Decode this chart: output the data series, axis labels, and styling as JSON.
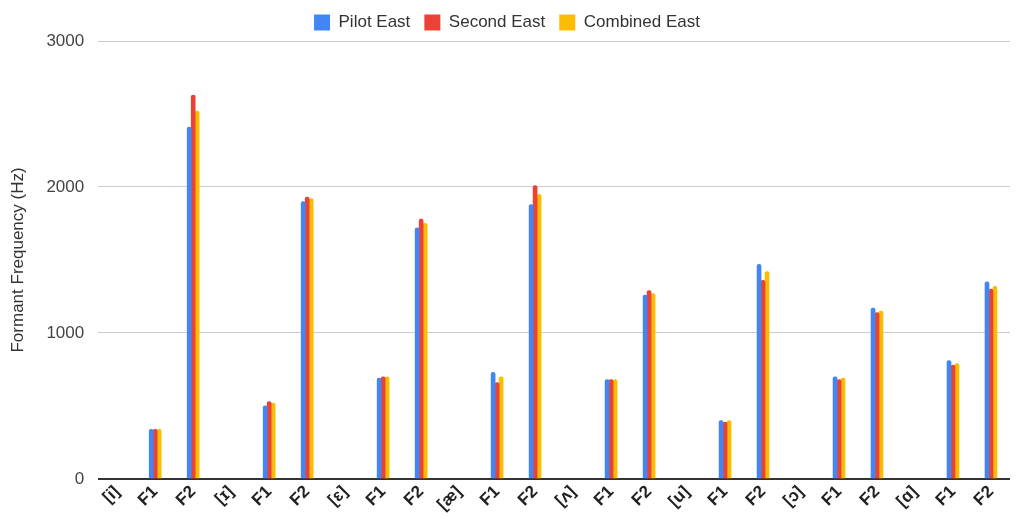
{
  "chart_data": {
    "type": "bar",
    "ylabel": "Formant Frequency (Hz)",
    "categories": [
      "[i]",
      "F1",
      "F2",
      "[ɪ]",
      "F1",
      "F2",
      "[ɛ]",
      "F1",
      "F2",
      "[æ]",
      "F1",
      "F2",
      "[ʌ]",
      "F1",
      "F2",
      "[u]",
      "F1",
      "F2",
      "[ɔ]",
      "F1",
      "F2",
      "[ɑ]",
      "F1",
      "F2"
    ],
    "series": [
      {
        "name": "Pilot East",
        "color": "#4285f4",
        "values": [
          null,
          340,
          2410,
          null,
          500,
          1900,
          null,
          690,
          1720,
          null,
          730,
          1880,
          null,
          680,
          1260,
          null,
          400,
          1470,
          null,
          700,
          1170,
          null,
          810,
          1350
        ]
      },
      {
        "name": "Second East",
        "color": "#ea4335",
        "values": [
          null,
          340,
          2630,
          null,
          530,
          1930,
          null,
          700,
          1780,
          null,
          660,
          2010,
          null,
          680,
          1290,
          null,
          390,
          1360,
          null,
          680,
          1140,
          null,
          780,
          1300
        ]
      },
      {
        "name": "Combined East",
        "color": "#fbbc04",
        "values": [
          null,
          340,
          2520,
          null,
          520,
          1920,
          null,
          700,
          1750,
          null,
          700,
          1950,
          null,
          680,
          1270,
          null,
          400,
          1420,
          null,
          690,
          1150,
          null,
          790,
          1320
        ]
      }
    ],
    "ylim": [
      0,
      3000
    ],
    "yticks": [
      0,
      1000,
      2000,
      3000
    ],
    "grid": "y",
    "legend": "top"
  }
}
